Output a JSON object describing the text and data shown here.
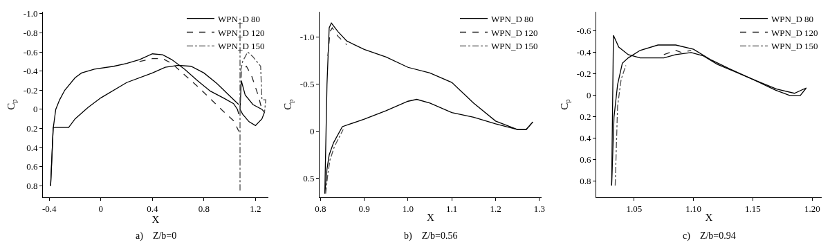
{
  "chart_data": [
    {
      "type": "line",
      "xlabel": "X",
      "ylabel": "C$_{p}$",
      "annotations": [
        "a)    Z/b=0"
      ],
      "legend": "top right",
      "grid": false,
      "xlim": [
        -0.45,
        1.3
      ],
      "xticks": [
        -0.4,
        0,
        0.4,
        0.8,
        1.2
      ],
      "ylim": [
        0.92,
        -1.02
      ],
      "yticks": [
        {
          "value": -1,
          "label": "-1.0"
        },
        -0.8,
        -0.6,
        -0.4,
        -0.2,
        0,
        0.2,
        0.4,
        0.6,
        0.8
      ],
      "series": [
        {
          "name": "WPN_D 80",
          "color": "#000000",
          "line_style": "solid",
          "x": [
            -0.39,
            -0.37,
            -0.35,
            -0.32,
            -0.28,
            -0.2,
            -0.15,
            -0.05,
            0.1,
            0.2,
            0.3,
            0.4,
            0.48,
            0.55,
            0.65,
            0.75,
            0.85,
            0.95,
            1.03,
            1.06,
            1.07,
            null,
            1.08,
            1.09,
            1.12,
            1.18,
            1.25,
            1.27,
            null,
            1.27,
            1.25,
            1.2,
            1.15,
            1.1,
            1.08,
            null,
            1.07,
            1.0,
            0.9,
            0.8,
            0.7,
            0.6,
            0.5,
            0.4,
            0.2,
            0.0,
            -0.1,
            -0.2,
            -0.25,
            -0.37,
            -0.39
          ],
          "values": [
            0.8,
            0.2,
            0.0,
            -0.1,
            -0.2,
            -0.33,
            -0.38,
            -0.42,
            -0.45,
            -0.48,
            -0.52,
            -0.58,
            -0.57,
            -0.52,
            -0.42,
            -0.3,
            -0.19,
            -0.12,
            -0.06,
            0.0,
            0.05,
            null,
            0.0,
            -0.3,
            -0.15,
            -0.05,
            0.0,
            0.03,
            null,
            0.03,
            0.1,
            0.17,
            0.13,
            0.05,
            0.0,
            null,
            -0.05,
            -0.14,
            -0.27,
            -0.38,
            -0.45,
            -0.46,
            -0.44,
            -0.38,
            -0.28,
            -0.12,
            -0.02,
            0.1,
            0.19,
            0.19,
            0.8
          ]
        },
        {
          "name": "WPN_D 120",
          "color": "#262626",
          "line_style": "dashed",
          "x": [
            0.3,
            0.4,
            0.48,
            0.55,
            0.65,
            0.75,
            0.85,
            0.95,
            1.03,
            1.06,
            1.07,
            null,
            1.085,
            1.09,
            1.13,
            1.17,
            1.22,
            1.25
          ],
          "values": [
            -0.5,
            -0.53,
            -0.53,
            -0.48,
            -0.36,
            -0.24,
            -0.11,
            0.02,
            0.12,
            0.2,
            0.23,
            null,
            -0.2,
            -0.4,
            -0.45,
            -0.35,
            -0.15,
            0.0
          ]
        },
        {
          "name": "WPN_D 150",
          "color": "#4d4d4d",
          "line_style": "dashdot",
          "x": [
            1.08,
            1.08,
            null,
            1.085,
            1.1,
            1.14,
            1.18,
            1.24,
            1.25,
            1.28,
            1.27
          ],
          "values": [
            0.85,
            -0.95,
            null,
            -0.4,
            -0.5,
            -0.6,
            -0.55,
            -0.45,
            -0.1,
            -0.1,
            0.03
          ]
        }
      ]
    },
    {
      "type": "line",
      "xlabel": "X",
      "ylabel": "C$_{p}$",
      "annotations": [
        "b)    Z/b=0.56"
      ],
      "legend": "top right",
      "grid": false,
      "xlim": [
        0.798,
        1.305
      ],
      "xticks": [
        0.8,
        0.9,
        {
          "value": 1,
          "label": "1.0"
        },
        1.1,
        1.2,
        1.3
      ],
      "ylim": [
        0.7,
        -1.27
      ],
      "yticks": [
        {
          "value": -1,
          "label": "-1.0"
        },
        -0.5,
        0,
        0.5
      ],
      "series": [
        {
          "name": "WPN_D 80",
          "color": "#000000",
          "line_style": "solid",
          "x": [
            0.81,
            0.815,
            0.82,
            0.825,
            0.84,
            0.86,
            0.9,
            0.95,
            1.0,
            1.05,
            1.1,
            1.15,
            1.2,
            1.25,
            1.27,
            1.285,
            null,
            1.285,
            1.27,
            1.25,
            1.2,
            1.15,
            1.1,
            1.05,
            1.02,
            1.0,
            0.95,
            0.9,
            0.85,
            0.83,
            0.82,
            0.815,
            0.81
          ],
          "values": [
            0.66,
            -0.5,
            -1.1,
            -1.15,
            -1.06,
            -0.96,
            -0.87,
            -0.79,
            -0.68,
            -0.62,
            -0.52,
            -0.3,
            -0.11,
            -0.02,
            -0.02,
            -0.1,
            null,
            -0.1,
            -0.02,
            -0.02,
            -0.08,
            -0.15,
            -0.2,
            -0.3,
            -0.34,
            -0.32,
            -0.22,
            -0.13,
            -0.05,
            0.12,
            0.25,
            0.4,
            0.66
          ]
        },
        {
          "name": "WPN_D 120",
          "color": "#262626",
          "line_style": "dashed",
          "x": [
            0.817,
            0.822,
            0.827,
            0.84,
            0.86
          ],
          "values": [
            -0.8,
            -1.06,
            -1.1,
            -1.01,
            -0.92
          ]
        },
        {
          "name": "WPN_D 150",
          "color": "#4d4d4d",
          "line_style": "dashdot",
          "x": [
            0.812,
            0.817,
            0.822,
            0.832,
            0.852
          ],
          "values": [
            0.66,
            0.45,
            0.3,
            0.16,
            -0.02
          ]
        }
      ]
    },
    {
      "type": "line",
      "xlabel": "X",
      "ylabel": "C$_{p}$",
      "annotations": [
        "c)    Z/b=0.94"
      ],
      "legend": "top right",
      "grid": false,
      "xlim": [
        1.018,
        1.208
      ],
      "xticks": [
        1.05,
        {
          "value": 1.1,
          "label": "1.10"
        },
        1.15,
        {
          "value": 1.2,
          "label": "1.20"
        }
      ],
      "ylim": [
        0.95,
        -0.78
      ],
      "yticks": [
        -0.6,
        -0.4,
        -0.2,
        0,
        0.2,
        0.4,
        0.6,
        0.8
      ],
      "series": [
        {
          "name": "WPN_D 80",
          "color": "#000000",
          "line_style": "solid",
          "x": [
            1.031,
            1.0325,
            1.037,
            1.045,
            1.055,
            1.065,
            1.075,
            1.085,
            1.098,
            1.108,
            1.12,
            1.135,
            1.15,
            1.169,
            1.181,
            1.19,
            1.195,
            null,
            1.195,
            1.185,
            1.17,
            1.15,
            1.13,
            1.115,
            1.1,
            1.085,
            1.07,
            1.055,
            1.045,
            1.04,
            1.036,
            1.033,
            1.031
          ],
          "values": [
            0.84,
            -0.56,
            -0.45,
            -0.38,
            -0.35,
            -0.35,
            -0.35,
            -0.38,
            -0.4,
            -0.37,
            -0.29,
            -0.22,
            -0.15,
            -0.05,
            0.0,
            0.0,
            -0.07,
            null,
            -0.07,
            -0.02,
            -0.06,
            -0.15,
            -0.25,
            -0.33,
            -0.43,
            -0.47,
            -0.47,
            -0.42,
            -0.35,
            -0.3,
            -0.1,
            0.2,
            0.84
          ]
        },
        {
          "name": "WPN_D 120",
          "color": "#262626",
          "line_style": "dashed",
          "x": [
            1.075,
            1.08,
            1.085,
            1.09,
            1.098
          ],
          "values": [
            -0.38,
            -0.4,
            -0.42,
            -0.4,
            -0.42
          ]
        },
        {
          "name": "WPN_D 150",
          "color": "#4d4d4d",
          "line_style": "dashdot",
          "x": [
            1.034,
            1.036,
            1.039,
            1.043
          ],
          "values": [
            0.84,
            0.1,
            -0.15,
            -0.28
          ]
        }
      ]
    }
  ]
}
